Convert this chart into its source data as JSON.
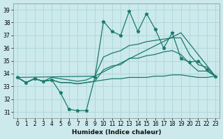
{
  "xlabel": "Humidex (Indice chaleur)",
  "x": [
    0,
    1,
    2,
    3,
    4,
    5,
    6,
    7,
    8,
    9,
    10,
    11,
    12,
    13,
    14,
    15,
    16,
    17,
    18,
    19,
    20,
    21,
    22,
    23
  ],
  "ylim": [
    30.5,
    39.5
  ],
  "xlim": [
    -0.5,
    23.5
  ],
  "yticks": [
    31,
    32,
    33,
    34,
    35,
    36,
    37,
    38,
    39
  ],
  "xticks": [
    0,
    1,
    2,
    3,
    4,
    5,
    6,
    7,
    8,
    9,
    10,
    11,
    12,
    13,
    14,
    15,
    16,
    17,
    18,
    19,
    20,
    21,
    22,
    23
  ],
  "line_color": "#1a7a6e",
  "bg_color": "#cce9ec",
  "grid_color": "#b0d8db",
  "line_max": [
    33.7,
    33.3,
    33.6,
    33.4,
    33.5,
    32.5,
    31.2,
    31.1,
    31.1,
    33.7,
    38.1,
    37.3,
    37.0,
    38.9,
    37.3,
    38.7,
    37.5,
    36.0,
    37.2,
    35.2,
    34.9,
    35.0,
    34.3,
    33.8
  ],
  "line_upper": [
    33.7,
    33.3,
    33.6,
    33.4,
    33.7,
    33.6,
    33.5,
    33.4,
    33.5,
    33.8,
    35.3,
    35.6,
    35.8,
    36.2,
    36.3,
    36.5,
    36.6,
    36.7,
    36.8,
    36.8,
    35.5,
    34.7,
    34.5,
    33.8
  ],
  "line_mean": [
    33.7,
    33.3,
    33.6,
    33.4,
    33.5,
    33.3,
    33.3,
    33.2,
    33.3,
    33.4,
    34.3,
    34.6,
    34.7,
    35.2,
    35.2,
    35.4,
    35.5,
    35.7,
    35.8,
    35.5,
    34.8,
    34.2,
    34.2,
    33.8
  ],
  "line_min": [
    33.7,
    33.3,
    33.6,
    33.4,
    33.5,
    33.3,
    33.3,
    33.2,
    33.3,
    33.4,
    33.5,
    33.6,
    33.6,
    33.7,
    33.7,
    33.7,
    33.8,
    33.8,
    33.9,
    33.9,
    33.8,
    33.7,
    33.7,
    33.8
  ],
  "trend_x": [
    0,
    9,
    19,
    23
  ],
  "trend_y": [
    33.7,
    33.8,
    37.2,
    33.8
  ]
}
